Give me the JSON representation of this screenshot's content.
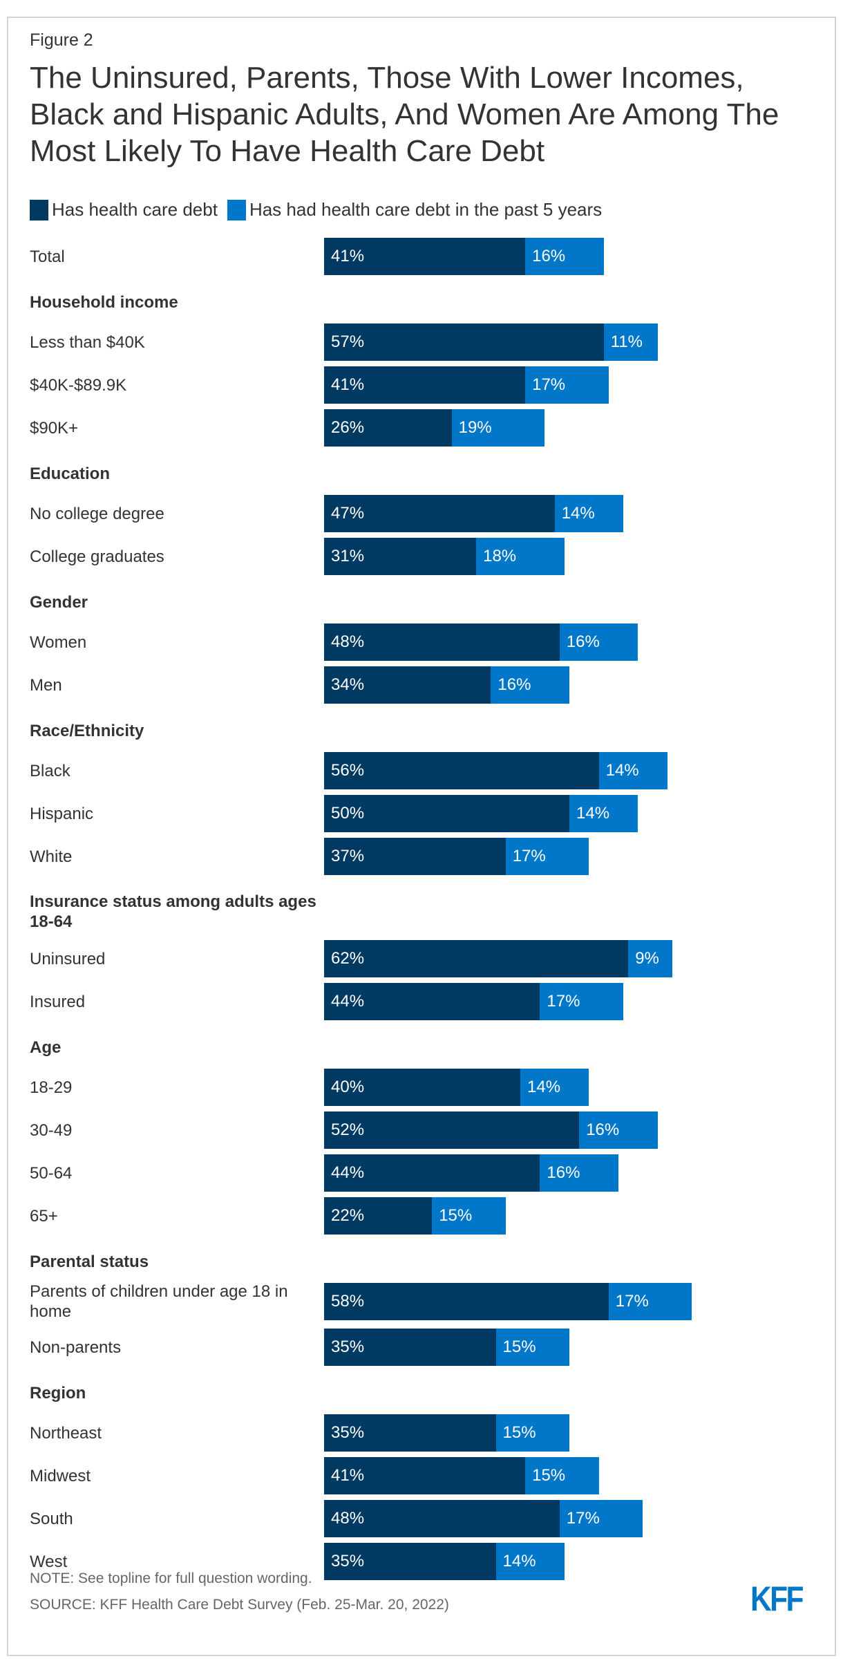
{
  "figure_label": "Figure 2",
  "title": "The Uninsured, Parents, Those With Lower Incomes, Black and Hispanic Adults, And Women Are Among The Most Likely To Have Health Care Debt",
  "chart_data": {
    "type": "bar",
    "orientation": "horizontal",
    "stacked": true,
    "colors": {
      "Has health care debt": "#003a63",
      "Has had health care debt in the past 5 years": "#0077c8"
    },
    "legend": [
      "Has health care debt",
      "Has had health care debt in the past 5 years"
    ],
    "legend_position": "top-left",
    "rows": [
      {
        "kind": "category",
        "label": "Total",
        "values": [
          41,
          16
        ]
      },
      {
        "kind": "header",
        "label": "Household income"
      },
      {
        "kind": "category",
        "label": "Less than $40K",
        "values": [
          57,
          11
        ]
      },
      {
        "kind": "category",
        "label": "$40K-$89.9K",
        "values": [
          41,
          17
        ]
      },
      {
        "kind": "category",
        "label": "$90K+",
        "values": [
          26,
          19
        ]
      },
      {
        "kind": "header",
        "label": "Education"
      },
      {
        "kind": "category",
        "label": "No college degree",
        "values": [
          47,
          14
        ]
      },
      {
        "kind": "category",
        "label": "College graduates",
        "values": [
          31,
          18
        ]
      },
      {
        "kind": "header",
        "label": "Gender"
      },
      {
        "kind": "category",
        "label": "Women",
        "values": [
          48,
          16
        ]
      },
      {
        "kind": "category",
        "label": "Men",
        "values": [
          34,
          16
        ]
      },
      {
        "kind": "header",
        "label": "Race/Ethnicity"
      },
      {
        "kind": "category",
        "label": "Black",
        "values": [
          56,
          14
        ]
      },
      {
        "kind": "category",
        "label": "Hispanic",
        "values": [
          50,
          14
        ]
      },
      {
        "kind": "category",
        "label": "White",
        "values": [
          37,
          17
        ]
      },
      {
        "kind": "header",
        "label": "Insurance status among adults ages 18-64"
      },
      {
        "kind": "category",
        "label": "Uninsured",
        "values": [
          62,
          9
        ]
      },
      {
        "kind": "category",
        "label": "Insured",
        "values": [
          44,
          17
        ]
      },
      {
        "kind": "header",
        "label": "Age"
      },
      {
        "kind": "category",
        "label": "18-29",
        "values": [
          40,
          14
        ]
      },
      {
        "kind": "category",
        "label": "30-49",
        "values": [
          52,
          16
        ]
      },
      {
        "kind": "category",
        "label": "50-64",
        "values": [
          44,
          16
        ]
      },
      {
        "kind": "category",
        "label": "65+",
        "values": [
          22,
          15
        ]
      },
      {
        "kind": "header",
        "label": "Parental status"
      },
      {
        "kind": "category",
        "label": "Parents of children under age 18 in home",
        "values": [
          58,
          17
        ]
      },
      {
        "kind": "category",
        "label": "Non-parents",
        "values": [
          35,
          15
        ]
      },
      {
        "kind": "header",
        "label": "Region"
      },
      {
        "kind": "category",
        "label": "Northeast",
        "values": [
          35,
          15
        ]
      },
      {
        "kind": "category",
        "label": "Midwest",
        "values": [
          41,
          15
        ]
      },
      {
        "kind": "category",
        "label": "South",
        "values": [
          48,
          17
        ]
      },
      {
        "kind": "category",
        "label": "West",
        "values": [
          35,
          14
        ]
      }
    ]
  },
  "note": "NOTE: See topline for full question wording.",
  "source": "SOURCE: KFF Health Care Debt Survey (Feb. 25-Mar. 20, 2022)",
  "logo_text": "KFF"
}
